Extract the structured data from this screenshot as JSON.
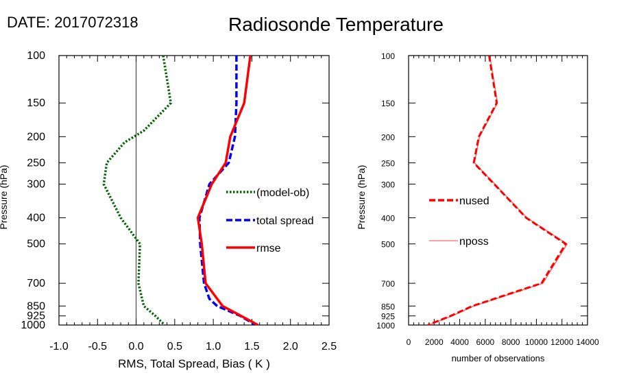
{
  "header": {
    "date_label": "DATE: 2017072318",
    "title": "Radiosonde Temperature"
  },
  "chart_data": [
    {
      "type": "line",
      "title": "",
      "xlabel": "RMS, Total Spread, Bias ( K )",
      "ylabel": "Pressure (hPa)",
      "xlim": [
        -1.0,
        2.5
      ],
      "ylim": [
        1000,
        100
      ],
      "y_scale": "log",
      "x_ticks": [
        -1.0,
        -0.5,
        0.0,
        0.5,
        1.0,
        1.5,
        2.0,
        2.5
      ],
      "x_tick_labels": [
        "-1.0",
        "-0.5",
        "0.0",
        "0.5",
        "1.0",
        "1.5",
        "2.0",
        "2.5"
      ],
      "y_ticks": [
        100,
        150,
        200,
        250,
        300,
        400,
        500,
        700,
        850,
        925,
        1000
      ],
      "y_tick_labels": [
        "100",
        "150",
        "200",
        "250",
        "300",
        "400",
        "500",
        "700",
        "850",
        "925",
        "1000"
      ],
      "zero_line": 0.0,
      "legend_position": "center-right",
      "series": [
        {
          "name": "(model-ob)",
          "color": "#006400",
          "style": "dotted",
          "x": [
            0.35,
            0.45,
            0.1,
            -0.15,
            -0.38,
            -0.42,
            -0.2,
            0.05,
            0.03,
            0.1,
            0.25,
            0.37
          ],
          "y": [
            100,
            150,
            190,
            210,
            250,
            300,
            400,
            500,
            700,
            850,
            925,
            1000
          ]
        },
        {
          "name": "total spread",
          "color": "#0000ff",
          "style": "dashed",
          "x": [
            1.3,
            1.3,
            1.28,
            1.2,
            0.95,
            0.82,
            0.83,
            0.88,
            0.95,
            1.05,
            1.35,
            1.55
          ],
          "y": [
            100,
            150,
            200,
            250,
            300,
            400,
            500,
            700,
            800,
            850,
            925,
            1000
          ]
        },
        {
          "name": "rmse",
          "color": "#ff0000",
          "style": "solid",
          "x": [
            1.48,
            1.4,
            1.22,
            1.16,
            0.98,
            0.8,
            0.85,
            0.9,
            1.12,
            1.36,
            1.58
          ],
          "y": [
            100,
            150,
            200,
            250,
            300,
            400,
            500,
            700,
            850,
            925,
            1000
          ]
        }
      ]
    },
    {
      "type": "line",
      "title": "",
      "xlabel": "number of observations",
      "ylabel": "Pressure (hPa)",
      "xlim": [
        0,
        14000
      ],
      "ylim": [
        1000,
        100
      ],
      "y_scale": "log",
      "x_ticks": [
        0,
        2000,
        4000,
        6000,
        8000,
        10000,
        12000,
        14000
      ],
      "x_tick_labels": [
        "0",
        "2000",
        "4000",
        "6000",
        "8000",
        "10000",
        "12000",
        "14000"
      ],
      "y_ticks": [
        100,
        150,
        200,
        250,
        300,
        400,
        500,
        700,
        850,
        925,
        1000
      ],
      "y_tick_labels": [
        "100",
        "150",
        "200",
        "250",
        "300",
        "400",
        "500",
        "700",
        "850",
        "925",
        "1000"
      ],
      "legend_position": "center-left",
      "series": [
        {
          "name": "nused",
          "color": "#ff0000",
          "style": "dashed",
          "x": [
            6300,
            6900,
            5500,
            5100,
            6700,
            9200,
            12300,
            10400,
            5000,
            3300,
            1500
          ],
          "y": [
            100,
            150,
            200,
            250,
            300,
            400,
            500,
            700,
            850,
            925,
            1000
          ]
        },
        {
          "name": "nposs",
          "color": "#ff6666",
          "style": "solid",
          "x": [
            6350,
            6950,
            5550,
            5150,
            6750,
            9250,
            12400,
            10500,
            5100,
            3400,
            1600
          ],
          "y": [
            100,
            150,
            200,
            250,
            300,
            400,
            500,
            700,
            850,
            925,
            1000
          ]
        }
      ]
    }
  ]
}
